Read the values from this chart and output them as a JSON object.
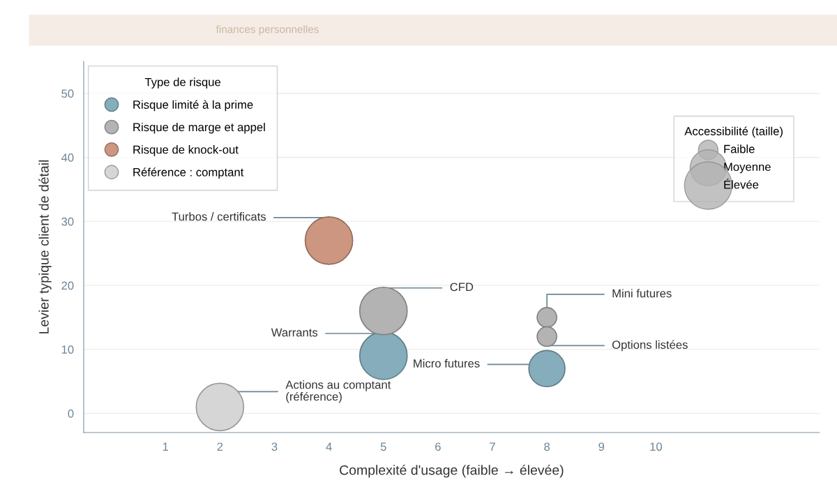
{
  "chart_data": {
    "type": "bubble",
    "subtitle": "finances personnelles",
    "xlabel": "Complexité d'usage (faible → élevée)",
    "ylabel": "Levier typique client de détail",
    "legend_title": [
      "Type de risque",
      "Accessibilité (taille)"
    ],
    "xlim": [
      -0.5,
      13
    ],
    "xticks": [
      1,
      2,
      3,
      4,
      5,
      6,
      7,
      8,
      9,
      10
    ],
    "ylim": [
      -3,
      55
    ],
    "yticks": [
      0,
      10,
      20,
      30,
      40,
      50
    ],
    "grid": "y",
    "legend": "top left",
    "series": [
      {
        "name": "Risque limité à la prime",
        "color": "#86adbb",
        "x": [
          5,
          8
        ],
        "values": [
          9,
          7
        ],
        "sizes": [
          1,
          0.58
        ]
      },
      {
        "name": "Risque de marge et appel",
        "color": "#b3b3b3",
        "x": [
          5,
          8,
          8
        ],
        "values": [
          16,
          15,
          12
        ],
        "sizes": [
          1,
          0.17,
          0.17
        ]
      },
      {
        "name": "Risque de knock-out",
        "color": "#cc9680",
        "x": [
          4
        ],
        "values": [
          27
        ],
        "sizes": [
          1
        ]
      },
      {
        "name": "Référence : comptant",
        "color": "#d6d6d6",
        "x": [
          2
        ],
        "values": [
          1
        ],
        "sizes": [
          1
        ]
      }
    ],
    "size_legend": [
      {
        "value": 0.17,
        "label": "Faible"
      },
      {
        "value": 0.58,
        "label": "Moyenne"
      },
      {
        "value": 1,
        "label": "Élevée"
      }
    ],
    "annotations": [
      {
        "text": "Turbos / certificats",
        "x": 4,
        "y": 27
      },
      {
        "text": "CFD",
        "x": 5,
        "y": 16
      },
      {
        "text": "Warrants",
        "x": 5,
        "y": 9
      },
      {
        "text": "Actions au comptant\n(référence)",
        "x": 2,
        "y": 1
      },
      {
        "text": "Mini futures",
        "x": 8,
        "y": 15
      },
      {
        "text": "Options listées",
        "x": 8,
        "y": 12
      },
      {
        "text": "Micro futures",
        "x": 8,
        "y": 7
      }
    ]
  }
}
